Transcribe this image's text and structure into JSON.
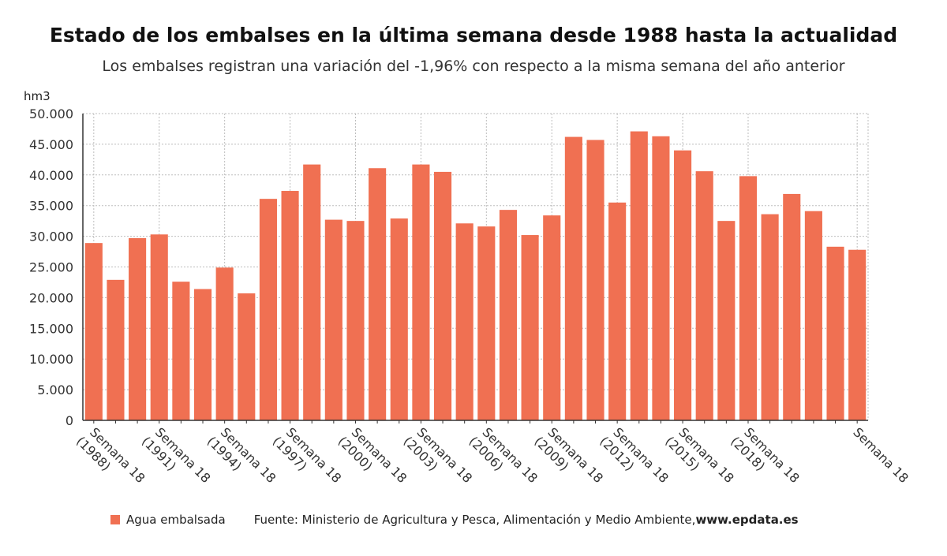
{
  "chart_data": {
    "type": "bar",
    "title": "Estado de los embalses en la última semana desde 1988 hasta la actualidad",
    "subtitle": "Los embalses registran una variación del -1,96% con respecto a la misma semana del año anterior",
    "ylabel": "hm3",
    "xlabel": "",
    "ylim": [
      0,
      50000
    ],
    "yticks": [
      "0",
      "5.000",
      "10.000",
      "15.000",
      "20.000",
      "25.000",
      "30.000",
      "35.000",
      "40.000",
      "45.000",
      "50.000"
    ],
    "grid": true,
    "legend_position": "bottom-left",
    "color": "#f07052",
    "series": [
      {
        "name": "Agua embalsada",
        "values": [
          28900,
          22900,
          29700,
          30300,
          22600,
          21400,
          24900,
          20700,
          36100,
          37400,
          41700,
          32700,
          32500,
          41100,
          32900,
          41700,
          40500,
          32100,
          31600,
          34300,
          30200,
          33400,
          46200,
          45700,
          35500,
          47100,
          46300,
          44000,
          40600,
          32500,
          39800,
          33600,
          36900,
          34100,
          28300,
          27800
        ]
      }
    ],
    "tick_labels": [
      {
        "index": 0,
        "line1": "Semana 18",
        "line2": "(1988)"
      },
      {
        "index": 3,
        "line1": "Semana 18",
        "line2": "(1991)"
      },
      {
        "index": 6,
        "line1": "Semana 18",
        "line2": "(1994)"
      },
      {
        "index": 9,
        "line1": "Semana 18",
        "line2": "(1997)"
      },
      {
        "index": 12,
        "line1": "Semana 18",
        "line2": "(2000)"
      },
      {
        "index": 15,
        "line1": "Semana 18",
        "line2": "(2003)"
      },
      {
        "index": 18,
        "line1": "Semana 18",
        "line2": "(2006)"
      },
      {
        "index": 21,
        "line1": "Semana 18",
        "line2": "(2009)"
      },
      {
        "index": 24,
        "line1": "Semana 18",
        "line2": "(2012)"
      },
      {
        "index": 27,
        "line1": "Semana 18",
        "line2": "(2015)"
      },
      {
        "index": 30,
        "line1": "Semana 18",
        "line2": "(2018)"
      },
      {
        "index": 35,
        "line1": "Semana 18",
        "line2": ""
      }
    ]
  },
  "legend": {
    "label": "Agua embalsada",
    "source_prefix": "Fuente: Ministerio de Agricultura y Pesca, Alimentación y Medio Ambiente, ",
    "source_url": "www.epdata.es"
  }
}
